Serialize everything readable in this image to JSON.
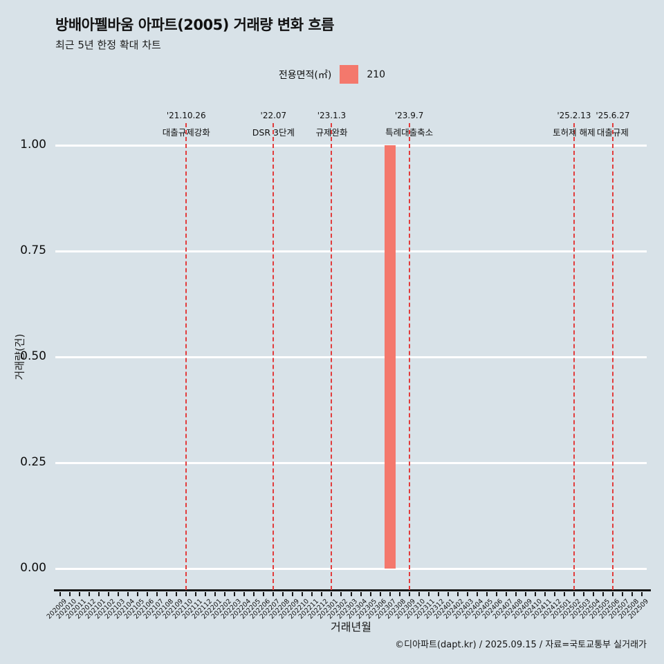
{
  "header": {
    "title": "방배아펠바움 아파트(2005) 거래량 변화 흐름",
    "subtitle": "최근 5년 한정 확대 차트"
  },
  "legend": {
    "label": "전용면적(㎡)",
    "series_name": "210",
    "color": "#f4786c"
  },
  "chart_data": {
    "type": "bar",
    "title": "방배아펠바움 아파트(2005) 거래량 변화 흐름",
    "subtitle": "최근 5년 한정 확대 차트",
    "xlabel": "거래년월",
    "ylabel": "거래량(건)",
    "ylim": [
      0,
      1
    ],
    "yticks": [
      "1.00",
      "0.75",
      "0.50",
      "0.25",
      "0.00"
    ],
    "grid": true,
    "legend_position": "top",
    "bar_color": "#f4786c",
    "event_color": "#e23b3b",
    "background_color": "#d8e2e8",
    "categories": [
      "202009",
      "202010",
      "202011",
      "202012",
      "202101",
      "202102",
      "202103",
      "202104",
      "202105",
      "202106",
      "202107",
      "202108",
      "202109",
      "202110",
      "202111",
      "202112",
      "202201",
      "202202",
      "202203",
      "202204",
      "202205",
      "202206",
      "202207",
      "202208",
      "202209",
      "202210",
      "202211",
      "202212",
      "202301",
      "202302",
      "202303",
      "202304",
      "202305",
      "202306",
      "202307",
      "202308",
      "202309",
      "202310",
      "202311",
      "202312",
      "202401",
      "202402",
      "202403",
      "202404",
      "202405",
      "202406",
      "202407",
      "202408",
      "202409",
      "202410",
      "202411",
      "202412",
      "202501",
      "202502",
      "202503",
      "202504",
      "202505",
      "202506",
      "202507",
      "202508",
      "202509"
    ],
    "series": [
      {
        "name": "210",
        "color": "#f4786c",
        "values": [
          0,
          0,
          0,
          0,
          0,
          0,
          0,
          0,
          0,
          0,
          0,
          0,
          0,
          0,
          0,
          0,
          0,
          0,
          0,
          0,
          0,
          0,
          0,
          0,
          0,
          0,
          0,
          0,
          0,
          0,
          0,
          0,
          0,
          0,
          1,
          0,
          0,
          0,
          0,
          0,
          0,
          0,
          0,
          0,
          0,
          0,
          0,
          0,
          0,
          0,
          0,
          0,
          0,
          0,
          0,
          0,
          0,
          0,
          0,
          0,
          0
        ]
      }
    ],
    "events": [
      {
        "date": "'21.10.26",
        "label": "대출규제강화",
        "month": "202110"
      },
      {
        "date": "'22.07",
        "label": "DSR 3단계",
        "month": "202207"
      },
      {
        "date": "'23.1.3",
        "label": "규제완화",
        "month": "202301"
      },
      {
        "date": "'23.9.7",
        "label": "특례대출축소",
        "month": "202309"
      },
      {
        "date": "'25.2.13",
        "label": "토허제 해제",
        "month": "202502"
      },
      {
        "date": "'25.6.27",
        "label": "대출규제",
        "month": "202506"
      }
    ]
  },
  "footer": {
    "credit": "©디아파트(dapt.kr) / 2025.09.15 / 자료=국토교통부 실거래가"
  }
}
